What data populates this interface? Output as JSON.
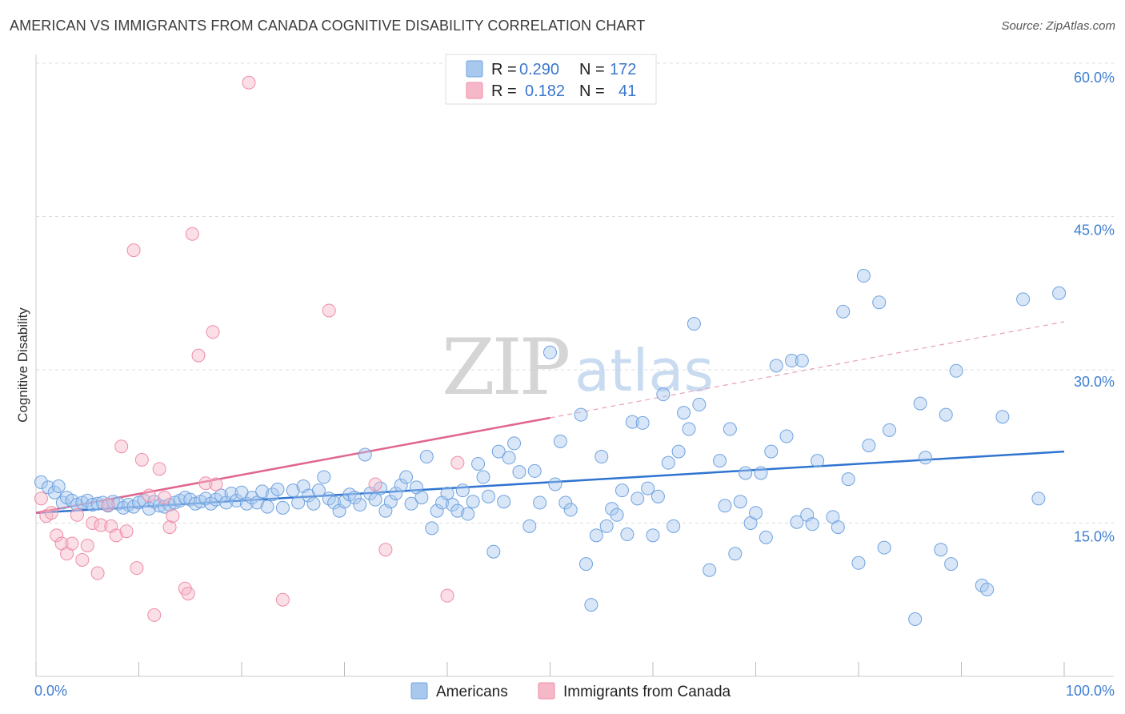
{
  "title": "AMERICAN VS IMMIGRANTS FROM CANADA COGNITIVE DISABILITY CORRELATION CHART",
  "source": "Source: ZipAtlas.com",
  "watermark": {
    "zip": "ZIP",
    "atlas": "atlas"
  },
  "legend_top": [
    {
      "r_label": "R =",
      "r_value": "0.290",
      "n_label": "N =",
      "n_value": "172",
      "color": "#a9c8ee"
    },
    {
      "r_label": "R =",
      "r_value": "0.182",
      "n_label": "N =",
      "n_value": "41",
      "color": "#f5b8c8"
    }
  ],
  "legend_bottom": [
    {
      "label": "Americans",
      "color": "#a9c8ee"
    },
    {
      "label": "Immigrants from Canada",
      "color": "#f5b8c8"
    }
  ],
  "chart_data": {
    "type": "scatter",
    "title": "AMERICAN VS IMMIGRANTS FROM CANADA COGNITIVE DISABILITY CORRELATION CHART",
    "xlabel": "",
    "ylabel": "Cognitive Disability",
    "xlim": [
      0,
      100
    ],
    "ylim": [
      0,
      60
    ],
    "x_tick_labels": [
      "0.0%",
      "100.0%"
    ],
    "y_ticks": [
      15,
      30,
      45,
      60
    ],
    "y_tick_labels": [
      "15.0%",
      "30.0%",
      "45.0%",
      "60.0%"
    ],
    "grid": "horizontal dashed",
    "legend_position": "top-center",
    "series": [
      {
        "name": "Americans",
        "color": "#6fa3e0",
        "trend": {
          "x": [
            0,
            100
          ],
          "y": [
            16.0,
            22.0
          ]
        },
        "points": [
          [
            0.5,
            19.0
          ],
          [
            1.2,
            18.5
          ],
          [
            1.8,
            18.0
          ],
          [
            2.2,
            18.6
          ],
          [
            2.6,
            17.0
          ],
          [
            3.0,
            17.5
          ],
          [
            3.5,
            17.2
          ],
          [
            4.0,
            16.8
          ],
          [
            4.5,
            17.0
          ],
          [
            5.0,
            17.2
          ],
          [
            5.5,
            16.8
          ],
          [
            6.0,
            16.9
          ],
          [
            6.5,
            17.0
          ],
          [
            7.0,
            16.7
          ],
          [
            7.5,
            17.1
          ],
          [
            8.0,
            16.9
          ],
          [
            8.5,
            16.5
          ],
          [
            9.0,
            16.8
          ],
          [
            9.5,
            16.6
          ],
          [
            10.0,
            17.0
          ],
          [
            10.5,
            17.2
          ],
          [
            11.0,
            16.4
          ],
          [
            11.5,
            17.1
          ],
          [
            12.0,
            16.7
          ],
          [
            12.5,
            16.6
          ],
          [
            13.0,
            16.8
          ],
          [
            13.5,
            17.0
          ],
          [
            14.0,
            17.2
          ],
          [
            14.5,
            17.5
          ],
          [
            15.0,
            17.3
          ],
          [
            15.5,
            16.9
          ],
          [
            16.0,
            17.1
          ],
          [
            16.5,
            17.4
          ],
          [
            17.0,
            16.9
          ],
          [
            17.5,
            17.3
          ],
          [
            18.0,
            17.7
          ],
          [
            18.5,
            17.0
          ],
          [
            19.0,
            17.9
          ],
          [
            19.5,
            17.2
          ],
          [
            20.0,
            18.0
          ],
          [
            20.5,
            16.9
          ],
          [
            21.0,
            17.5
          ],
          [
            21.5,
            17.0
          ],
          [
            22.0,
            18.1
          ],
          [
            22.5,
            16.6
          ],
          [
            23.0,
            17.8
          ],
          [
            23.5,
            18.3
          ],
          [
            24.0,
            16.5
          ],
          [
            25.0,
            18.2
          ],
          [
            25.5,
            17.0
          ],
          [
            26.0,
            18.6
          ],
          [
            26.5,
            17.7
          ],
          [
            27.0,
            16.9
          ],
          [
            27.5,
            18.2
          ],
          [
            28.0,
            19.5
          ],
          [
            28.5,
            17.4
          ],
          [
            29.0,
            17.0
          ],
          [
            29.5,
            16.2
          ],
          [
            30.0,
            17.1
          ],
          [
            30.5,
            17.8
          ],
          [
            31.0,
            17.5
          ],
          [
            31.5,
            16.8
          ],
          [
            32.0,
            21.7
          ],
          [
            32.5,
            17.9
          ],
          [
            33.0,
            17.3
          ],
          [
            33.5,
            18.4
          ],
          [
            34.0,
            16.2
          ],
          [
            34.5,
            17.1
          ],
          [
            35.0,
            17.9
          ],
          [
            35.5,
            18.7
          ],
          [
            36.0,
            19.5
          ],
          [
            36.5,
            16.9
          ],
          [
            37.0,
            18.5
          ],
          [
            37.5,
            17.5
          ],
          [
            38.0,
            21.5
          ],
          [
            38.5,
            14.5
          ],
          [
            39.0,
            16.2
          ],
          [
            39.5,
            17.0
          ],
          [
            40.0,
            17.9
          ],
          [
            40.5,
            16.8
          ],
          [
            41.0,
            16.2
          ],
          [
            41.5,
            18.2
          ],
          [
            42.0,
            15.9
          ],
          [
            42.5,
            17.1
          ],
          [
            43.0,
            20.8
          ],
          [
            43.5,
            19.5
          ],
          [
            44.0,
            17.6
          ],
          [
            44.5,
            12.2
          ],
          [
            45.0,
            22.0
          ],
          [
            45.5,
            17.1
          ],
          [
            46.0,
            21.4
          ],
          [
            46.5,
            22.8
          ],
          [
            47.0,
            20.0
          ],
          [
            48.0,
            14.7
          ],
          [
            48.5,
            20.1
          ],
          [
            49.0,
            17.0
          ],
          [
            50.0,
            31.7
          ],
          [
            50.5,
            18.8
          ],
          [
            51.0,
            23.0
          ],
          [
            51.5,
            17.0
          ],
          [
            52.0,
            16.3
          ],
          [
            53.0,
            25.6
          ],
          [
            53.5,
            11.0
          ],
          [
            54.0,
            7.0
          ],
          [
            54.5,
            13.8
          ],
          [
            55.0,
            21.5
          ],
          [
            55.5,
            14.7
          ],
          [
            56.0,
            16.4
          ],
          [
            56.5,
            15.8
          ],
          [
            57.0,
            18.2
          ],
          [
            57.5,
            13.9
          ],
          [
            58.0,
            24.9
          ],
          [
            58.5,
            17.4
          ],
          [
            59.0,
            24.8
          ],
          [
            59.5,
            18.4
          ],
          [
            60.0,
            13.8
          ],
          [
            60.5,
            17.6
          ],
          [
            61.0,
            27.6
          ],
          [
            61.5,
            20.9
          ],
          [
            62.0,
            14.7
          ],
          [
            62.5,
            22.0
          ],
          [
            63.0,
            25.8
          ],
          [
            63.5,
            24.2
          ],
          [
            64.0,
            34.5
          ],
          [
            64.5,
            26.6
          ],
          [
            65.5,
            10.4
          ],
          [
            66.5,
            21.1
          ],
          [
            67.0,
            16.7
          ],
          [
            67.5,
            24.2
          ],
          [
            68.0,
            12.0
          ],
          [
            68.5,
            17.1
          ],
          [
            69.0,
            19.9
          ],
          [
            69.5,
            15.0
          ],
          [
            70.0,
            16.0
          ],
          [
            70.5,
            19.9
          ],
          [
            71.0,
            13.6
          ],
          [
            71.5,
            22.0
          ],
          [
            72.0,
            30.4
          ],
          [
            73.0,
            23.5
          ],
          [
            73.5,
            30.9
          ],
          [
            74.0,
            15.1
          ],
          [
            74.5,
            30.9
          ],
          [
            75.0,
            15.8
          ],
          [
            75.5,
            14.9
          ],
          [
            76.0,
            21.1
          ],
          [
            77.5,
            15.6
          ],
          [
            78.0,
            14.6
          ],
          [
            78.5,
            35.7
          ],
          [
            79.0,
            19.3
          ],
          [
            80.0,
            11.1
          ],
          [
            80.5,
            39.2
          ],
          [
            81.0,
            22.6
          ],
          [
            82.0,
            36.6
          ],
          [
            82.5,
            12.6
          ],
          [
            83.0,
            24.1
          ],
          [
            85.5,
            5.6
          ],
          [
            86.0,
            26.7
          ],
          [
            86.5,
            21.4
          ],
          [
            88.0,
            12.4
          ],
          [
            88.5,
            25.6
          ],
          [
            89.0,
            11.0
          ],
          [
            89.5,
            29.9
          ],
          [
            92.0,
            8.9
          ],
          [
            92.5,
            8.5
          ],
          [
            94.0,
            25.4
          ],
          [
            96.0,
            36.9
          ],
          [
            97.5,
            17.4
          ],
          [
            99.5,
            37.5
          ]
        ]
      },
      {
        "name": "Immigrants from Canada",
        "color": "#f08ca8",
        "trend": {
          "x": [
            0,
            50
          ],
          "y": [
            16.0,
            25.3
          ]
        },
        "trend_extension": {
          "x": [
            50,
            100
          ],
          "y": [
            25.3,
            34.7
          ]
        },
        "points": [
          [
            0.5,
            17.4
          ],
          [
            1.0,
            15.7
          ],
          [
            1.5,
            16.0
          ],
          [
            2.0,
            13.8
          ],
          [
            2.5,
            13.0
          ],
          [
            3.0,
            12.0
          ],
          [
            3.5,
            13.0
          ],
          [
            4.0,
            15.8
          ],
          [
            4.5,
            11.4
          ],
          [
            5.0,
            12.8
          ],
          [
            5.5,
            15.0
          ],
          [
            6.0,
            10.1
          ],
          [
            6.3,
            14.8
          ],
          [
            7.0,
            16.8
          ],
          [
            7.3,
            14.7
          ],
          [
            7.8,
            13.8
          ],
          [
            8.3,
            22.5
          ],
          [
            8.8,
            14.2
          ],
          [
            9.5,
            41.7
          ],
          [
            9.8,
            10.6
          ],
          [
            10.3,
            21.2
          ],
          [
            11.0,
            17.7
          ],
          [
            11.5,
            6.0
          ],
          [
            12.0,
            20.3
          ],
          [
            12.5,
            17.5
          ],
          [
            13.0,
            14.6
          ],
          [
            13.3,
            15.7
          ],
          [
            14.5,
            8.6
          ],
          [
            14.8,
            8.1
          ],
          [
            15.2,
            43.3
          ],
          [
            15.8,
            31.4
          ],
          [
            16.5,
            18.9
          ],
          [
            17.2,
            33.7
          ],
          [
            17.5,
            18.8
          ],
          [
            20.7,
            58.1
          ],
          [
            24.0,
            7.5
          ],
          [
            28.5,
            35.8
          ],
          [
            33.0,
            18.8
          ],
          [
            34.0,
            12.4
          ],
          [
            40.0,
            7.9
          ],
          [
            41.0,
            20.9
          ]
        ]
      }
    ]
  }
}
